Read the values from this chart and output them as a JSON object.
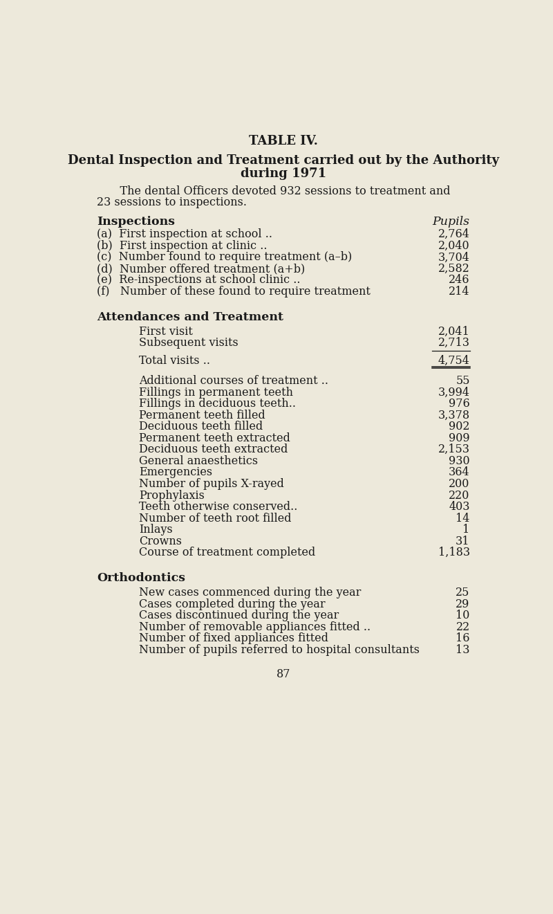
{
  "bg_color": "#ede9db",
  "text_color": "#1a1a1a",
  "title1": "TABLE IV.",
  "title2": "Dental Inspection and Treatment carried out by the Authority",
  "title3": "during 1971",
  "intro_line1": "    The dental Officers devoted 932 sessions to treatment and",
  "intro_line2": "23 sessions to inspections.",
  "section1_header_left": "Inspections",
  "section1_header_right": "Pupils",
  "insp_labels": [
    "(a)  First inspection at school ..",
    "(b)  First inspection at clinic ..",
    "(c)  Number found to require treatment (a–b)",
    "(d)  Number offered treatment (a+b)",
    "(e)  Re-inspections at school clinic ..",
    "(f)   Number of these found to require treatment"
  ],
  "insp_dots": [
    "  ..    ..    ..    ..",
    "  ..    ..    ..    ..",
    "  ..",
    "  ..    ..",
    "  ..    ..    ..",
    "  .."
  ],
  "insp_values": [
    "2,764",
    "2,040",
    "3,704",
    "2,582",
    "246",
    "214"
  ],
  "section2_header": "Attendances and Treatment",
  "visit_labels": [
    "First visit",
    "Subsequent visits"
  ],
  "visit_values": [
    "2,041",
    "2,713"
  ],
  "total_label": "Total visits ..",
  "total_value": "4,754",
  "treat_labels": [
    "Additional courses of treatment ..",
    "Fillings in permanent teeth",
    "Fillings in deciduous teeth..",
    "Permanent teeth filled",
    "Deciduous teeth filled",
    "Permanent teeth extracted",
    "Deciduous teeth extracted",
    "General anaesthetics",
    "Emergencies",
    "Number of pupils X-rayed",
    "Prophylaxis",
    "Teeth otherwise conserved..",
    "Number of teeth root filled",
    "Inlays",
    "Crowns",
    "Course of treatment completed"
  ],
  "treat_values": [
    "55",
    "3,994",
    "976",
    "3,378",
    "902",
    "909",
    "2,153",
    "930",
    "364",
    "200",
    "220",
    "403",
    "14",
    "1",
    "31",
    "1,183"
  ],
  "section3_header": "Orthodontics",
  "ortho_labels": [
    "New cases commenced during the year",
    "Cases completed during the year",
    "Cases discontinued during the year",
    "Number of removable appliances fitted ..",
    "Number of fixed appliances fitted",
    "Number of pupils referred to hospital consultants"
  ],
  "ortho_values": [
    "25",
    "29",
    "10",
    "22",
    "16",
    "13"
  ],
  "page_number": "87"
}
